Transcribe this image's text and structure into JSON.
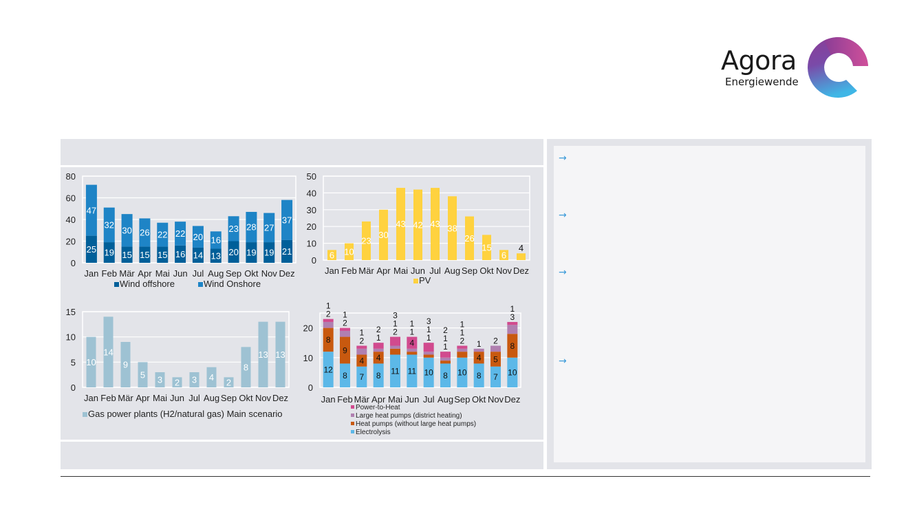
{
  "logo": {
    "word": "Agora",
    "sub": "Energiewende"
  },
  "colors": {
    "panel": "#e3e4e9",
    "arrow": "#3a9ad9"
  },
  "bullets": [
    {
      "icon": "arrow-right-icon",
      "glyph": "→"
    },
    {
      "icon": "arrow-right-icon",
      "glyph": "→"
    },
    {
      "icon": "arrow-right-icon",
      "glyph": "→"
    },
    {
      "icon": "arrow-right-icon",
      "glyph": "→"
    }
  ],
  "chart_data": [
    {
      "type": "bar",
      "stacked": true,
      "grid": true,
      "categories": [
        "Jan",
        "Feb",
        "Mär",
        "Apr",
        "Mai",
        "Jun",
        "Jul",
        "Aug",
        "Sep",
        "Okt",
        "Nov",
        "Dez"
      ],
      "ylim": [
        0,
        80
      ],
      "yticks": [
        0,
        20,
        40,
        60,
        80
      ],
      "legend": "bottom",
      "series": [
        {
          "name": "Wind offshore",
          "color": "#005f99",
          "values": [
            25,
            19,
            15,
            15,
            15,
            16,
            14,
            13,
            20,
            19,
            19,
            21
          ]
        },
        {
          "name": "Wind Onshore",
          "color": "#1e84c6",
          "values": [
            47,
            32,
            30,
            26,
            22,
            22,
            20,
            16,
            23,
            28,
            27,
            37
          ]
        }
      ]
    },
    {
      "type": "bar",
      "stacked": true,
      "grid": true,
      "categories": [
        "Jan",
        "Feb",
        "Mär",
        "Apr",
        "Mai",
        "Jun",
        "Jul",
        "Aug",
        "Sep",
        "Okt",
        "Nov",
        "Dez"
      ],
      "ylim": [
        0,
        50
      ],
      "yticks": [
        0,
        10,
        20,
        30,
        40,
        50
      ],
      "legend": "bottom",
      "series": [
        {
          "name": "PV",
          "color": "#ffd23f",
          "values": [
            6,
            10,
            23,
            30,
            43,
            42,
            43,
            38,
            26,
            15,
            6,
            4
          ]
        }
      ]
    },
    {
      "type": "bar",
      "stacked": true,
      "grid": true,
      "categories": [
        "Jan",
        "Feb",
        "Mär",
        "Apr",
        "Mai",
        "Jun",
        "Jul",
        "Aug",
        "Sep",
        "Okt",
        "Nov",
        "Dez"
      ],
      "ylim": [
        0,
        15
      ],
      "yticks": [
        0,
        5,
        10,
        15
      ],
      "legend": "bottom-left",
      "series": [
        {
          "name": "Gas power plants (H2/natural gas) Main scenario",
          "color": "#9ec2d3",
          "values": [
            10,
            14,
            9,
            5,
            3,
            2,
            3,
            4,
            2,
            8,
            13,
            13
          ]
        }
      ]
    },
    {
      "type": "bar",
      "stacked": true,
      "grid": true,
      "categories": [
        "Jan",
        "Feb",
        "Mär",
        "Apr",
        "Mai",
        "Jun",
        "Jul",
        "Aug",
        "Sep",
        "Okt",
        "Nov",
        "Dez"
      ],
      "ylim": [
        0,
        25
      ],
      "yticks": [
        0,
        10,
        20
      ],
      "legend": "bottom",
      "series": [
        {
          "name": "Electrolysis",
          "color": "#5cb8e8",
          "values": [
            12,
            8,
            7,
            8,
            11,
            11,
            10,
            8,
            10,
            8,
            7,
            10
          ]
        },
        {
          "name": "Heat pumps (without large heat pumps)",
          "color": "#c8590f",
          "values": [
            8,
            9,
            4,
            4,
            2,
            1,
            1,
            1,
            2,
            4,
            5,
            8
          ]
        },
        {
          "name": "Large heat pumps (district heating)",
          "color": "#b07fb0",
          "values": [
            2,
            2,
            2,
            1,
            1,
            1,
            1,
            1,
            1,
            1,
            2,
            3
          ]
        },
        {
          "name": "Power-to-Heat",
          "color": "#d14a8e",
          "values": [
            1,
            1,
            1,
            2,
            3,
            4,
            3,
            2,
            1,
            0,
            0,
            1
          ]
        }
      ]
    }
  ]
}
